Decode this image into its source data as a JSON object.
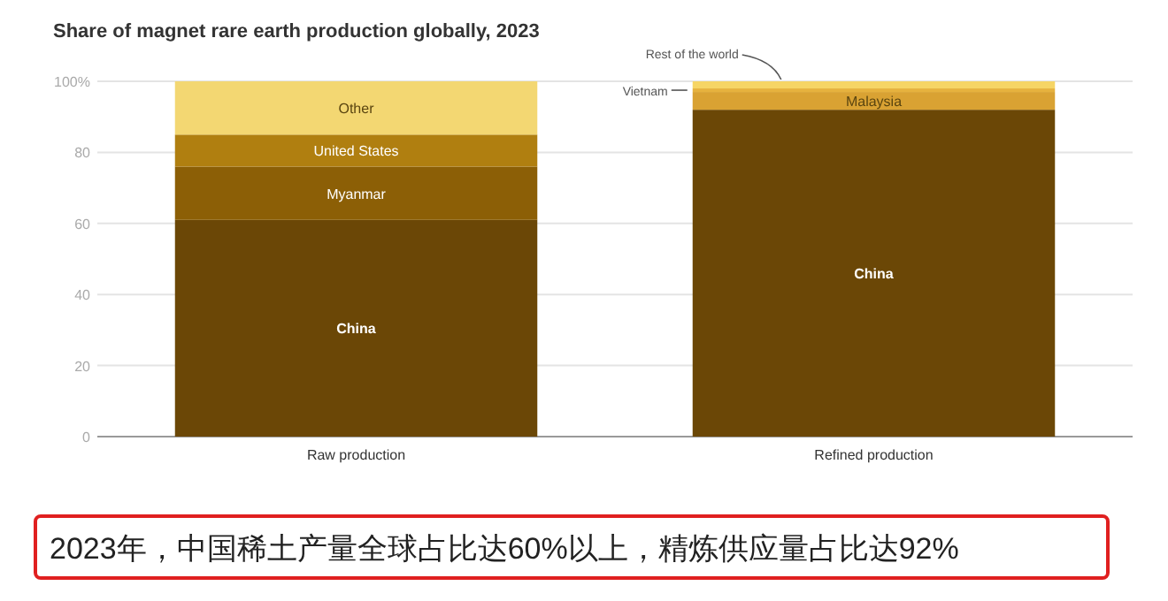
{
  "chart_data": {
    "type": "bar",
    "stacked": true,
    "title": "Share of magnet rare earth production globally, 2023",
    "categories": [
      "Raw production",
      "Refined production"
    ],
    "series": [
      {
        "name": "China",
        "color": "#6b4706",
        "values": [
          61,
          92
        ]
      },
      {
        "name": "Myanmar",
        "color": "#8c5f06",
        "values": [
          15,
          null
        ]
      },
      {
        "name": "United States",
        "color": "#b07f10",
        "values": [
          9,
          null
        ]
      },
      {
        "name": "Malaysia",
        "color": "#d9a233",
        "values": [
          null,
          5
        ]
      },
      {
        "name": "Vietnam",
        "color": "#e6b23e",
        "values": [
          null,
          1
        ]
      },
      {
        "name": "Other",
        "color": "#f3d772",
        "values": [
          15,
          null
        ]
      },
      {
        "name": "Rest of the world",
        "color": "#f6d565",
        "values": [
          null,
          2
        ]
      }
    ],
    "ylim": [
      0,
      100
    ],
    "yticks": [
      0,
      20,
      40,
      60,
      80,
      {
        "value": 100,
        "label": "100%"
      }
    ],
    "grid": "y",
    "annotations": [
      "2023年，中国稀土产量全球占比达60%以上，精炼供应量占比达92%"
    ]
  }
}
